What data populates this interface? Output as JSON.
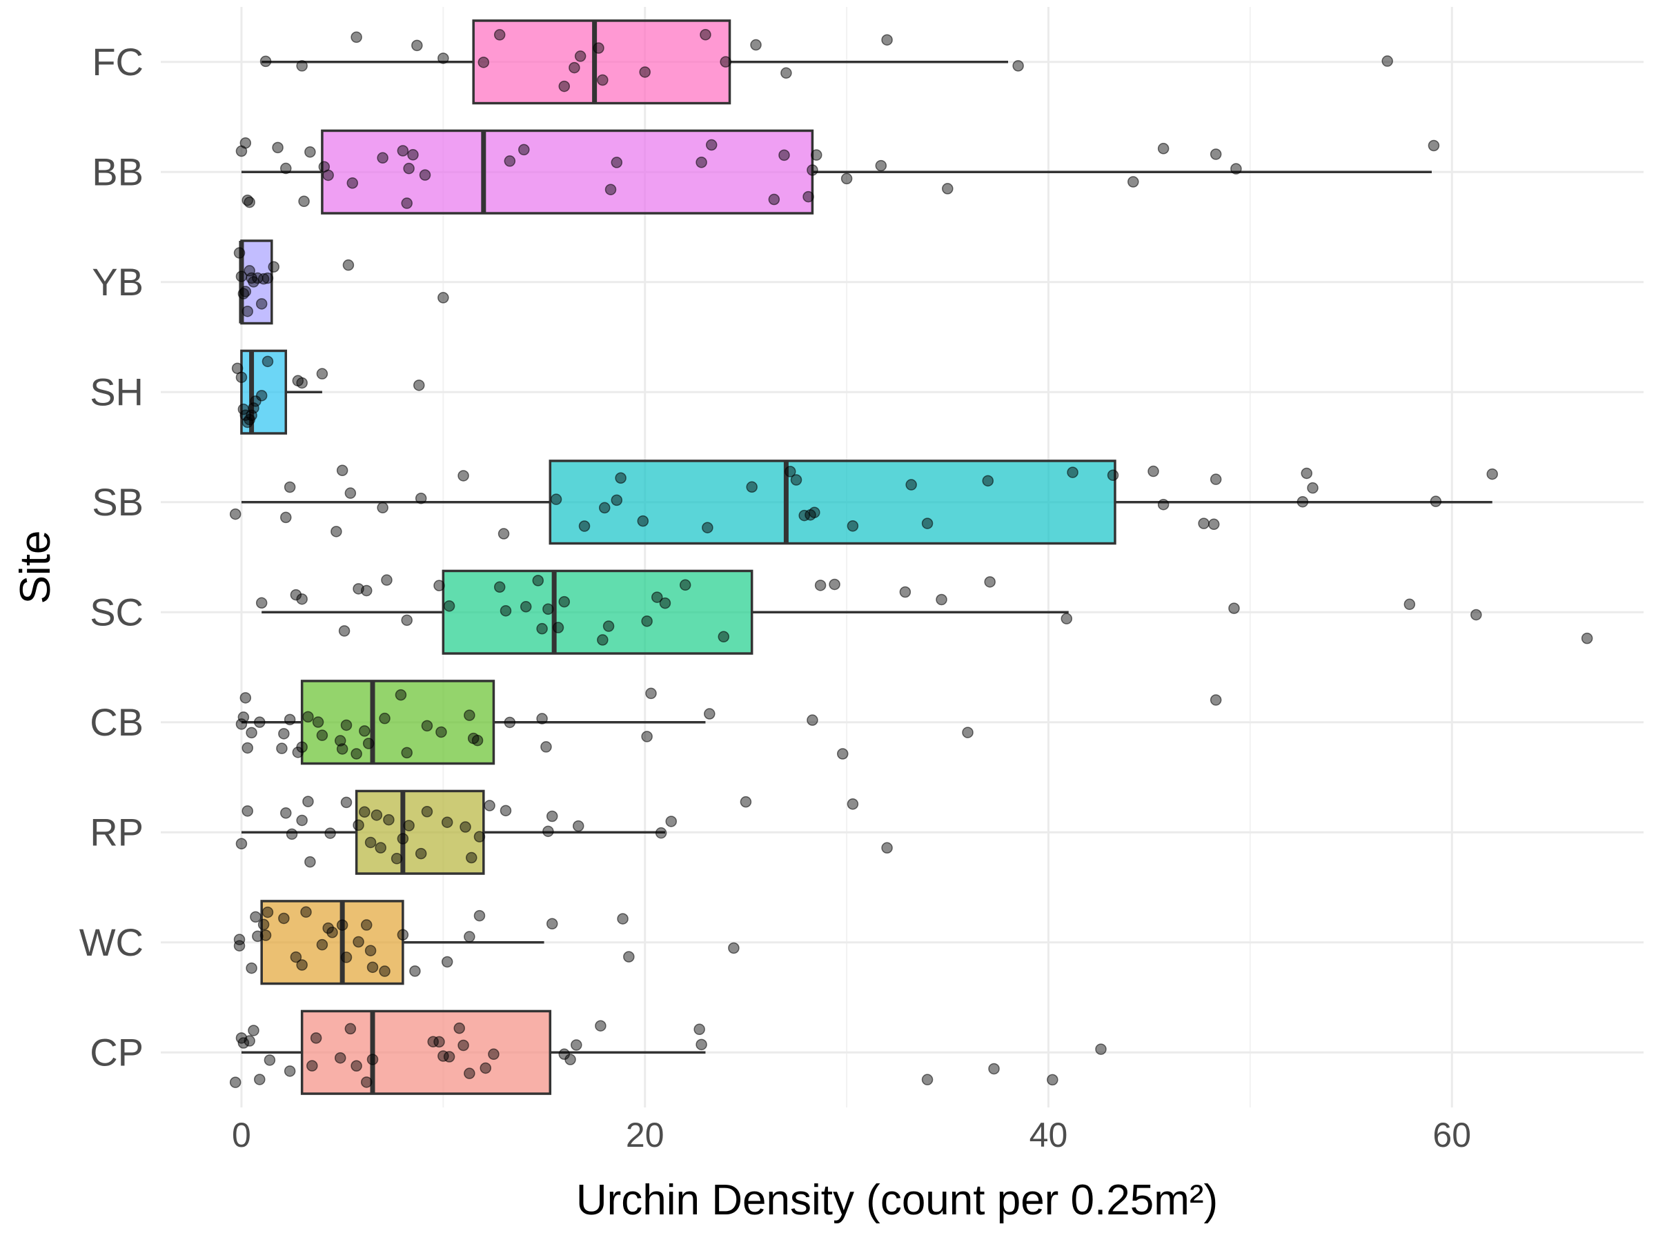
{
  "chart_data": {
    "type": "boxplot",
    "orientation": "horizontal",
    "title": "",
    "xlabel": "Urchin Density (count per 0.25m²)",
    "ylabel": "Site",
    "xlim": [
      -4,
      69.5
    ],
    "x_ticks": [
      0,
      20,
      40,
      60
    ],
    "grid": true,
    "legend": "none",
    "categories": [
      "FC",
      "BB",
      "YB",
      "SH",
      "SB",
      "SC",
      "CB",
      "RP",
      "WC",
      "CP"
    ],
    "boxes": [
      {
        "site": "FC",
        "color": "#ff6ec0",
        "whisker_low": 1,
        "q1": 11.5,
        "median": 17.5,
        "q3": 24.2,
        "whisker_high": 38,
        "points": [
          1.2,
          3,
          5.7,
          8.7,
          10,
          12,
          12.8,
          16,
          16.5,
          16.8,
          17.7,
          17.9,
          20,
          23,
          24,
          25.5,
          27,
          32,
          38.5,
          56.8
        ]
      },
      {
        "site": "BB",
        "color": "#e876ee",
        "whisker_low": 0,
        "q1": 4,
        "median": 12,
        "q3": 28.3,
        "whisker_high": 59,
        "points": [
          0,
          0.2,
          0.3,
          0.4,
          1.8,
          2.2,
          3.1,
          3.4,
          4.1,
          4.3,
          5.5,
          7,
          8,
          8.2,
          8.3,
          8.5,
          9.1,
          13.3,
          14,
          18.3,
          18.6,
          22.8,
          23.3,
          26.4,
          26.9,
          28.1,
          28.3,
          28.5,
          30,
          31.7,
          35,
          44.2,
          45.7,
          48.3,
          49.3,
          59.1
        ]
      },
      {
        "site": "YB",
        "color": "#a8a1ff",
        "whisker_low": 0,
        "q1": 0,
        "median": 0,
        "q3": 1.5,
        "whisker_high": 1.5,
        "points": [
          -0.1,
          0,
          0.1,
          0.2,
          0.3,
          0.4,
          0.5,
          0.6,
          0.8,
          1.0,
          1.1,
          1.3,
          1.6,
          5.3,
          10
        ]
      },
      {
        "site": "SH",
        "color": "#2ec4f2",
        "whisker_low": 0,
        "q1": 0,
        "median": 0.5,
        "q3": 2.2,
        "whisker_high": 4,
        "points": [
          -0.2,
          0,
          0.1,
          0.2,
          0.3,
          0.4,
          0.5,
          0.6,
          0.7,
          1.0,
          1.3,
          2.8,
          3,
          4,
          8.8
        ]
      },
      {
        "site": "SB",
        "color": "#14c3c8",
        "whisker_low": 0,
        "q1": 15.3,
        "median": 27,
        "q3": 43.3,
        "whisker_high": 62,
        "points": [
          -0.3,
          2.2,
          2.4,
          4.7,
          5,
          5.4,
          7,
          8.9,
          11,
          13,
          15.6,
          17,
          18,
          18.6,
          18.8,
          19.9,
          23.1,
          25.3,
          27.2,
          27.5,
          27.9,
          28.2,
          28.4,
          30.3,
          33.2,
          34,
          37,
          41.2,
          43.2,
          45.2,
          45.7,
          47.7,
          48.2,
          48.3,
          52.6,
          52.8,
          53.1,
          59.2,
          62
        ]
      },
      {
        "site": "SC",
        "color": "#1ecf8c",
        "whisker_low": 1,
        "q1": 10,
        "median": 15.5,
        "q3": 25.3,
        "whisker_high": 41,
        "points": [
          1,
          2.7,
          3,
          5.1,
          5.8,
          6.2,
          7.2,
          8.2,
          9.8,
          10.3,
          12.8,
          13.1,
          14.1,
          14.7,
          14.9,
          15.2,
          15.7,
          16,
          17.9,
          18.2,
          20.1,
          20.6,
          21,
          22,
          23.9,
          28.7,
          29.4,
          32.9,
          34.7,
          37.1,
          40.9,
          49.2,
          57.9,
          61.2,
          66.7
        ]
      },
      {
        "site": "CB",
        "color": "#66c22e",
        "whisker_low": 0,
        "q1": 3,
        "median": 6.5,
        "q3": 12.5,
        "whisker_high": 23,
        "points": [
          0,
          0.1,
          0.2,
          0.3,
          0.5,
          0.9,
          2,
          2.1,
          2.4,
          2.8,
          3,
          3.3,
          3.8,
          4,
          4.9,
          5,
          5.2,
          5.7,
          6.1,
          6.3,
          7.1,
          7.9,
          8.2,
          9.2,
          9.9,
          11.3,
          11.5,
          11.7,
          13.3,
          14.9,
          15.1,
          20.1,
          20.3,
          23.2,
          28.3,
          29.8,
          36,
          48.3
        ]
      },
      {
        "site": "RP",
        "color": "#b6b53c",
        "whisker_low": 0,
        "q1": 5.7,
        "median": 8,
        "q3": 12,
        "whisker_high": 21,
        "points": [
          0,
          0.3,
          2.2,
          2.5,
          3,
          3.3,
          3.4,
          4.4,
          5.2,
          5.8,
          6.1,
          6.4,
          6.7,
          6.9,
          7.3,
          7.7,
          8,
          8.3,
          8.9,
          9.2,
          10.2,
          11.1,
          11.4,
          11.8,
          12.3,
          13.1,
          15.2,
          15.4,
          16.7,
          20.8,
          21.3,
          25,
          30.3,
          32
        ]
      },
      {
        "site": "WC",
        "color": "#e3a536",
        "whisker_low": 1,
        "q1": 1,
        "median": 5,
        "q3": 8,
        "whisker_high": 15,
        "points": [
          -0.1,
          -0.1,
          0.5,
          0.7,
          0.8,
          1.1,
          1.2,
          1.3,
          2.1,
          2.7,
          3,
          3.2,
          4,
          4.3,
          4.5,
          5,
          5.2,
          5.8,
          6.2,
          6.4,
          6.5,
          7.1,
          8,
          8.6,
          10.2,
          11.3,
          11.8,
          15.4,
          18.9,
          19.2,
          24.4
        ]
      },
      {
        "site": "CP",
        "color": "#f58f83",
        "whisker_low": 0,
        "q1": 3,
        "median": 6.5,
        "q3": 15.3,
        "whisker_high": 23,
        "points": [
          -0.3,
          0,
          0.1,
          0.4,
          0.6,
          0.9,
          1.4,
          2.4,
          3.5,
          3.7,
          4.9,
          5.4,
          5.7,
          6.2,
          6.5,
          9.5,
          9.8,
          10,
          10.3,
          10.8,
          11,
          11.3,
          12.1,
          12.5,
          16,
          16.3,
          16.6,
          17.8,
          22.7,
          22.8,
          34,
          37.3,
          40.2,
          42.6
        ]
      }
    ]
  }
}
